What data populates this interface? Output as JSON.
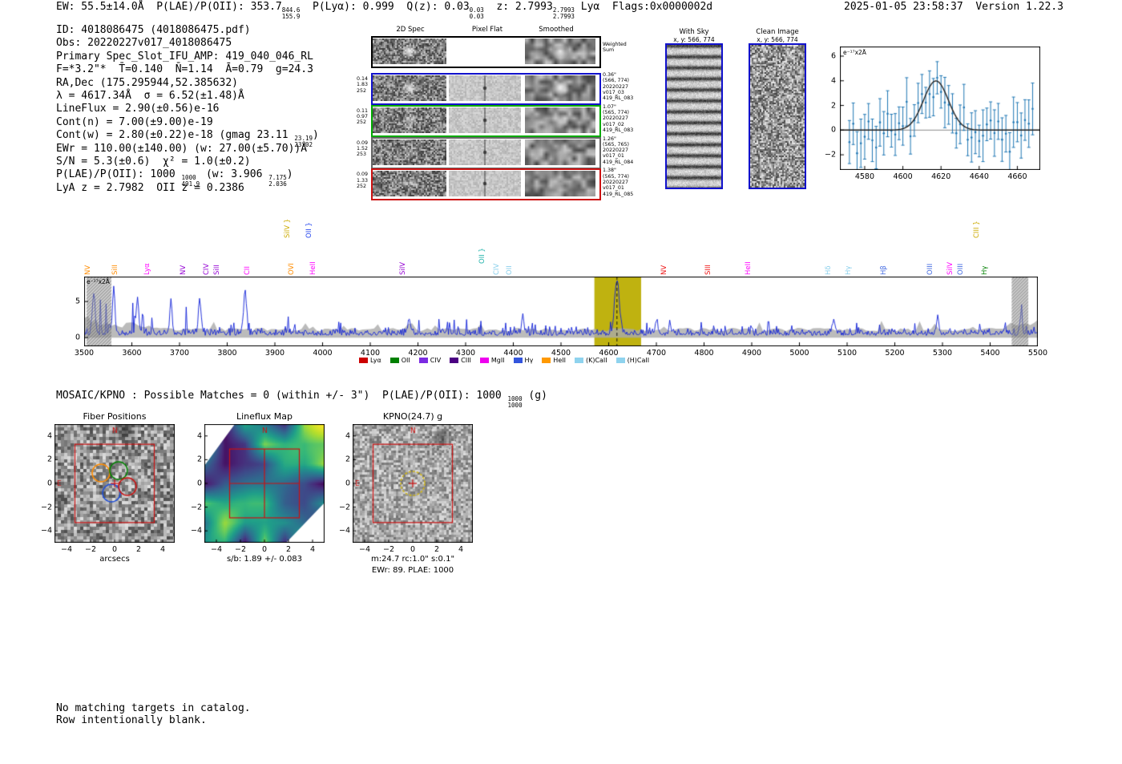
{
  "header": {
    "segments": [
      {
        "t": "EW: 55.5±14.0Å  P(LAE)/P(OII): 353.7"
      },
      {
        "sup": "844.6",
        "sub": "155.9"
      },
      {
        "t": "  P(Lyα): 0.999  Q(z): 0.03"
      },
      {
        "sup": "0.03",
        "sub": "0.03"
      },
      {
        "t": "  z: 2.7993"
      },
      {
        "sup": "2.7993",
        "sub": "2.7993"
      },
      {
        "t": " Lyα  Flags:0x0000002d"
      }
    ],
    "datetime_version": "2025-01-05 23:58:37  Version 1.22.3"
  },
  "info": {
    "lines": [
      [
        {
          "t": "ID: 4018086475 (4018086475.pdf)"
        }
      ],
      [
        {
          "t": "Obs: 20220227v017_4018086475"
        }
      ],
      [
        {
          "t": "Primary Spec_Slot_IFU_AMP: 419_040_046_RL"
        }
      ],
      [
        {
          "t": "F=*3.2\"*  T̄=0.140  N̄=1.14  Ā=0.79  g=24.3"
        }
      ],
      [
        {
          "t": "RA,Dec (175.295944,52.385632)"
        }
      ],
      [
        {
          "t": "λ = 4617.34Å  σ = 6.52(±1.48)Å"
        }
      ],
      [
        {
          "t": "LineFlux = 2.90(±0.56)e-16"
        }
      ],
      [
        {
          "t": "Cont(n) = 7.00(±9.00)e-19"
        }
      ],
      [
        {
          "t": "Cont(w) = 2.80(±0.22)e-18 (gmag 23.11 "
        },
        {
          "sup": "23.19",
          "sub": "23.02"
        },
        {
          "t": ")"
        }
      ],
      [
        {
          "t": "EWr = 110.00(±140.00) (w: 27.00(±5.70))Å"
        }
      ],
      [
        {
          "t": "S/N = 5.3(±0.6)  χ² = 1.0(±0.2)"
        }
      ],
      [
        {
          "t": "P(LAE)/P(OII): 1000 "
        },
        {
          "sup": "1000",
          "sub": "491.9"
        },
        {
          "t": " (w: 3.906 "
        },
        {
          "sup": "7.175",
          "sub": "2.036"
        },
        {
          "t": ")"
        }
      ],
      [
        {
          "t": "LyA z = 2.7982  OII z = 0.2386"
        }
      ]
    ]
  },
  "cutouts": {
    "col_headers": [
      "2D Spec",
      "Pixel Flat",
      "Smoothed"
    ],
    "weighted_label": [
      "Weighted",
      "Sum"
    ],
    "rows": [
      {
        "color": "#000000",
        "weighted": true,
        "left": [],
        "right": []
      },
      {
        "color": "#1111cc",
        "left": [
          "0.14",
          "1.83",
          "252"
        ],
        "right": [
          "0.36\"",
          "(566, 774)",
          "20220227",
          "v017_03",
          "419_RL_083"
        ]
      },
      {
        "color": "#00aa00",
        "left": [
          "0.11",
          "0.97",
          "252"
        ],
        "right": [
          "1.07\"",
          "(565, 774)",
          "20220227",
          "v017_02",
          "419_RL_083"
        ]
      },
      {
        "color": "#666666",
        "left": [
          "0.09",
          "1.52",
          "253"
        ],
        "right": [
          "1.26\"",
          "(565, 765)",
          "20220227",
          "v017_01",
          "419_RL_084"
        ]
      },
      {
        "color": "#cc1111",
        "left": [
          "0.09",
          "1.33",
          "252"
        ],
        "right": [
          "1.38\"",
          "(565, 774)",
          "20220227",
          "v017_01",
          "419_RL_085"
        ]
      }
    ]
  },
  "with_sky": {
    "title": "With Sky",
    "subtitle": "x, y: 566, 774"
  },
  "clean_image": {
    "title": "Clean Image",
    "subtitle": "x, y: 566, 774"
  },
  "mosaic": {
    "segments": [
      {
        "t": "MOSAIC/KPNO : Possible Matches = 0 (within +/- 3\")  P(LAE)/P(OII): 1000 "
      },
      {
        "sup": "1000",
        "sub": "1000"
      },
      {
        "t": " (g)"
      }
    ]
  },
  "panels": [
    {
      "id": "fibers",
      "title": "Fiber Positions",
      "xlabel": "arcsecs",
      "xticks": [
        -4,
        -2,
        0,
        2,
        4
      ],
      "yticks": [
        4,
        2,
        0,
        -2,
        -4
      ],
      "compass_n": "N",
      "compass_e": "E"
    },
    {
      "id": "lineflux",
      "title": "Lineflux Map",
      "xlabel": "s/b: 1.89 +/- 0.083",
      "xticks": [
        -4,
        -2,
        0,
        2,
        4
      ],
      "yticks": [
        4,
        2,
        0,
        -2,
        -4
      ],
      "compass_n": "N",
      "compass_e": ""
    },
    {
      "id": "kpno",
      "title": "KPNO(24.7) g",
      "xlabel": "m:24.7 rc:1.0\" s:0.1\"",
      "xlabel2": "EWr: 89. PLAE: 1000",
      "xticks": [
        -4,
        -2,
        0,
        2,
        4
      ],
      "yticks": [
        4,
        2,
        0,
        -2,
        -4
      ],
      "compass_n": "N",
      "compass_e": "E"
    }
  ],
  "footer": [
    "No matching targets in catalog.",
    "Row intentionally blank."
  ],
  "chart_data": [
    {
      "id": "fit_inset",
      "type": "scatter",
      "ylabel_inside": "e⁻¹⁷x2Å",
      "xlim": [
        4567,
        4672
      ],
      "ylim": [
        -3.23,
        6.78
      ],
      "xticks": [
        4580,
        4600,
        4620,
        4640,
        4660
      ],
      "yticks": [
        6,
        4,
        2,
        0,
        -2
      ],
      "fit": {
        "type": "gaussian",
        "mu": 4617.34,
        "sigma": 6.52,
        "amplitude": 4.0,
        "baseline": 0.0
      },
      "point_color": "#1f77b4",
      "fit_color": "#222222",
      "zero_line_color": "#888888",
      "seed": 11,
      "point_spacing": 2,
      "noise_sigma": 0.85,
      "errorbar_base": 1.2,
      "errorbar_jitter": 0.9
    },
    {
      "id": "main_spectrum",
      "type": "line",
      "ylabel_inside": "e⁻¹⁷x2Å",
      "xlim": [
        3500,
        5500
      ],
      "ylim": [
        -1.2,
        8.45
      ],
      "xticks": [
        3500,
        3600,
        3700,
        3800,
        3900,
        4000,
        4100,
        4200,
        4300,
        4400,
        4500,
        4600,
        4700,
        4800,
        4900,
        5000,
        5100,
        5200,
        5300,
        5400,
        5500
      ],
      "yticks": [
        5,
        0
      ],
      "line_color": "#1020d8",
      "envelope_color": "rgba(170,170,170,0.8)",
      "highlight_band": {
        "x0": 4570,
        "x1": 4668,
        "color": "#bfb210"
      },
      "dashed_marker_x": 4617.34,
      "edge_mask_regions": [
        [
          3505,
          3557
        ],
        [
          5445,
          5480
        ]
      ],
      "seed": 23,
      "emission_peak": {
        "mu": 4617.34,
        "sigma": 6.52,
        "amplitude": 7.2
      },
      "notable_peaks": [
        {
          "wave": 4617.34,
          "height": 7.2,
          "sigma": 5.0
        },
        {
          "wave": 3520,
          "height": 5.6,
          "sigma": 3.0
        },
        {
          "wave": 3562,
          "height": 6.2,
          "sigma": 2.5
        },
        {
          "wave": 3612,
          "height": 5.2,
          "sigma": 2.5
        },
        {
          "wave": 3682,
          "height": 4.3,
          "sigma": 2.5
        },
        {
          "wave": 3742,
          "height": 4.8,
          "sigma": 2.5
        },
        {
          "wave": 3838,
          "height": 6.0,
          "sigma": 2.5
        },
        {
          "wave": 4182,
          "height": 2.1,
          "sigma": 2.5
        },
        {
          "wave": 4420,
          "height": 2.7,
          "sigma": 2.5
        },
        {
          "wave": 4700,
          "height": 1.9,
          "sigma": 2.5
        },
        {
          "wave": 5072,
          "height": 2.1,
          "sigma": 2.5
        },
        {
          "wave": 5290,
          "height": 2.3,
          "sigma": 2.5
        },
        {
          "wave": 5465,
          "height": 2.9,
          "sigma": 2.5
        }
      ],
      "spectral_lines": [
        {
          "label": "NV",
          "wave": 3504,
          "color": "#ff8c00",
          "lift": 0
        },
        {
          "label": "SiII",
          "wave": 3560,
          "color": "#ff8c00",
          "lift": 0
        },
        {
          "label": "Lyα",
          "wave": 3628,
          "color": "#ff00ff",
          "lift": 0
        },
        {
          "label": "NV",
          "wave": 3703,
          "color": "#9400d3",
          "lift": 0
        },
        {
          "label": "CIV",
          "wave": 3752,
          "color": "#9400d3",
          "lift": 0
        },
        {
          "label": "SiII",
          "wave": 3774,
          "color": "#9400d3",
          "lift": 0
        },
        {
          "label": "CII",
          "wave": 3838,
          "color": "#ff00ff",
          "lift": 0
        },
        {
          "label": "SiIV }",
          "wave": 3922,
          "color": "#ccaa00",
          "lift": 46
        },
        {
          "label": "OVI",
          "wave": 3930,
          "color": "#ff8c00",
          "lift": 0
        },
        {
          "label": "OII }",
          "wave": 3968,
          "color": "#2244ee",
          "lift": 46
        },
        {
          "label": "HeII",
          "wave": 3976,
          "color": "#ff00ff",
          "lift": 0
        },
        {
          "label": "SiIV",
          "wave": 4164,
          "color": "#9400d3",
          "lift": 0
        },
        {
          "label": "OII }",
          "wave": 4330,
          "color": "#20b2aa",
          "lift": 14
        },
        {
          "label": "CIV",
          "wave": 4360,
          "color": "#87ceeb",
          "lift": 0
        },
        {
          "label": "OII",
          "wave": 4388,
          "color": "#87ceeb",
          "lift": 0
        },
        {
          "label": "NV",
          "wave": 4712,
          "color": "#ee1111",
          "lift": 0
        },
        {
          "label": "SIII",
          "wave": 4805,
          "color": "#ee1111",
          "lift": 0
        },
        {
          "label": "HeII",
          "wave": 4888,
          "color": "#ff00ff",
          "lift": 0
        },
        {
          "label": "Hδ",
          "wave": 5056,
          "color": "#87ceeb",
          "lift": 0
        },
        {
          "label": "Hγ",
          "wave": 5098,
          "color": "#87ceeb",
          "lift": 0
        },
        {
          "label": "Hβ",
          "wave": 5172,
          "color": "#4169e1",
          "lift": 0
        },
        {
          "label": "OIII",
          "wave": 5270,
          "color": "#4169e1",
          "lift": 0
        },
        {
          "label": "SiIV",
          "wave": 5312,
          "color": "#ff00ff",
          "lift": 0
        },
        {
          "label": "OIII",
          "wave": 5334,
          "color": "#4169e1",
          "lift": 0
        },
        {
          "label": "CIII }",
          "wave": 5368,
          "color": "#ccaa00",
          "lift": 46
        },
        {
          "label": "Hγ",
          "wave": 5384,
          "color": "#008000",
          "lift": 0
        }
      ],
      "legend": [
        {
          "label": "Lyα",
          "color": "#cc0000"
        },
        {
          "label": "OII",
          "color": "#008000"
        },
        {
          "label": "CIV",
          "color": "#7b2be2"
        },
        {
          "label": "CIII",
          "color": "#4b0082"
        },
        {
          "label": "MgII",
          "color": "#ee00ee"
        },
        {
          "label": "Hγ",
          "color": "#3355dd"
        },
        {
          "label": "HeII",
          "color": "#ff9900"
        },
        {
          "label": "(K)CaII",
          "color": "#8fd3ee"
        },
        {
          "label": "(H)CaII",
          "color": "#8fd3ee"
        }
      ]
    }
  ]
}
